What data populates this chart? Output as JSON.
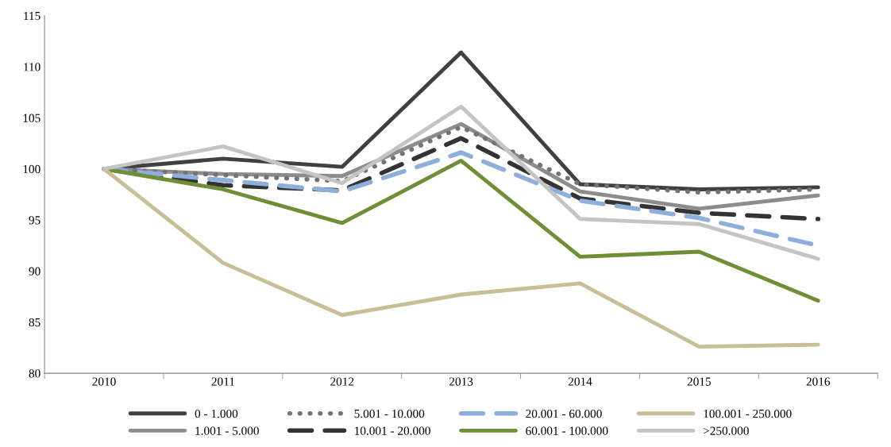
{
  "chart_data": {
    "type": "line",
    "categories": [
      "2010",
      "2011",
      "2012",
      "2013",
      "2014",
      "2015",
      "2016"
    ],
    "ylim": [
      80,
      115
    ],
    "yticks": [
      80,
      85,
      90,
      95,
      100,
      105,
      110,
      115
    ],
    "grid": false,
    "legend": "bottom",
    "marker": "none",
    "series": [
      {
        "name": "0 - 1.000",
        "color": "#404040",
        "line_style": "solid",
        "values": [
          100,
          101.0,
          100.2,
          111.4,
          98.5,
          98.0,
          98.2
        ]
      },
      {
        "name": "1.001 - 5.000",
        "color": "#8c8c8c",
        "line_style": "solid",
        "values": [
          100,
          99.5,
          99.3,
          104.4,
          97.8,
          96.1,
          97.4
        ]
      },
      {
        "name": "5.001 - 10.000",
        "color": "#737373",
        "line_style": "dotted",
        "values": [
          100,
          99.4,
          98.8,
          104.1,
          98.5,
          97.7,
          98.0
        ]
      },
      {
        "name": "10.001 - 20.000",
        "color": "#333333",
        "line_style": "dashed",
        "values": [
          100,
          98.4,
          97.9,
          103.0,
          97.1,
          95.7,
          95.1
        ]
      },
      {
        "name": "20.001 - 60.000",
        "color": "#8eaedb",
        "line_style": "dashed",
        "values": [
          100,
          98.9,
          97.8,
          101.6,
          96.9,
          95.2,
          92.5
        ]
      },
      {
        "name": "60.001 - 100.000",
        "color": "#6e8f35",
        "line_style": "solid",
        "values": [
          100,
          98.0,
          94.7,
          100.8,
          91.4,
          91.9,
          87.1
        ]
      },
      {
        "name": "100.001 - 250.000",
        "color": "#c8bf97",
        "line_style": "solid",
        "values": [
          100,
          90.8,
          85.7,
          87.7,
          88.8,
          82.6,
          82.8
        ]
      },
      {
        "name": ">250.000",
        "color": "#c4c4c4",
        "line_style": "solid",
        "values": [
          100,
          102.2,
          98.6,
          106.1,
          95.1,
          94.6,
          91.2
        ]
      }
    ]
  }
}
